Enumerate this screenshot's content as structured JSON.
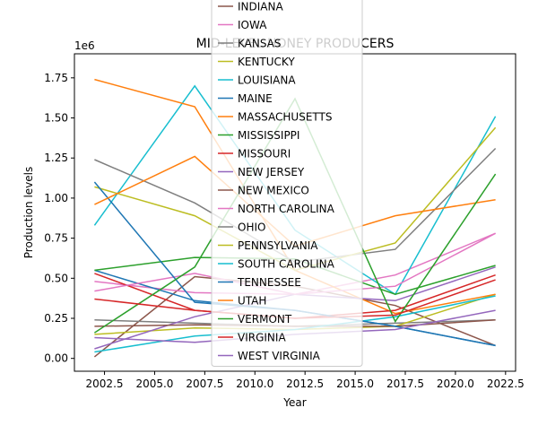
{
  "chart_data": {
    "type": "line",
    "title": "MID-LEVEL HONEY PRODUCERS",
    "xlabel": "Year",
    "ylabel": "Production levels",
    "y_offset_label": "1e6",
    "xlim": [
      2001.0,
      2023.0
    ],
    "ylim": [
      -0.08,
      1.9
    ],
    "x_ticks": [
      2002.5,
      2005.0,
      2007.5,
      2010.0,
      2012.5,
      2015.0,
      2017.5,
      2020.0,
      2022.5
    ],
    "x_tick_labels": [
      "2002.5",
      "2005.0",
      "2007.5",
      "2010.0",
      "2012.5",
      "2015.0",
      "2017.5",
      "2020.0",
      "2022.5"
    ],
    "y_ticks": [
      0.0,
      0.25,
      0.5,
      0.75,
      1.0,
      1.25,
      1.5,
      1.75
    ],
    "y_tick_labels": [
      "0.00",
      "0.25",
      "0.50",
      "0.75",
      "1.00",
      "1.25",
      "1.50",
      "1.75"
    ],
    "grid": false,
    "legend_position": "top-center",
    "x": [
      2002,
      2007,
      2012,
      2017,
      2022
    ],
    "series": [
      {
        "name": "INDIANA",
        "color": "#8c564b",
        "values": [
          0.01,
          0.51,
          0.45,
          0.33,
          0.08
        ]
      },
      {
        "name": "IOWA",
        "color": "#e377c2",
        "values": [
          0.48,
          0.41,
          0.4,
          0.52,
          0.78
        ]
      },
      {
        "name": "KANSAS",
        "color": "#7f7f7f",
        "values": [
          0.24,
          0.22,
          0.2,
          0.22,
          0.24
        ]
      },
      {
        "name": "KENTUCKY",
        "color": "#bcbd22",
        "values": [
          0.15,
          0.19,
          0.18,
          0.2,
          0.4
        ]
      },
      {
        "name": "LOUISIANA",
        "color": "#17becf",
        "values": [
          0.83,
          1.7,
          0.8,
          0.4,
          1.51
        ]
      },
      {
        "name": "MAINE",
        "color": "#1f77b4",
        "values": [
          0.55,
          0.36,
          0.3,
          0.2,
          0.08
        ]
      },
      {
        "name": "MASSACHUSETTS",
        "color": "#ff7f0e",
        "values": [
          1.74,
          1.57,
          0.55,
          0.28,
          0.4
        ]
      },
      {
        "name": "MISSISSIPPI",
        "color": "#2ca02c",
        "values": [
          0.55,
          0.63,
          0.62,
          0.4,
          0.58
        ]
      },
      {
        "name": "MISSOURI",
        "color": "#d62728",
        "values": [
          0.53,
          0.3,
          0.25,
          0.3,
          0.52
        ]
      },
      {
        "name": "NEW JERSEY",
        "color": "#9467bd",
        "values": [
          0.06,
          0.26,
          0.4,
          0.36,
          0.57
        ]
      },
      {
        "name": "NEW MEXICO",
        "color": "#8c564b",
        "values": [
          0.2,
          0.21,
          0.2,
          0.2,
          0.24
        ]
      },
      {
        "name": "NORTH CAROLINA",
        "color": "#e377c2",
        "values": [
          0.42,
          0.53,
          0.4,
          0.45,
          0.78
        ]
      },
      {
        "name": "OHIO",
        "color": "#7f7f7f",
        "values": [
          1.24,
          0.97,
          0.6,
          0.68,
          1.31
        ]
      },
      {
        "name": "PENNSYLVANIA",
        "color": "#bcbd22",
        "values": [
          1.07,
          0.89,
          0.55,
          0.72,
          1.44
        ]
      },
      {
        "name": "SOUTH CAROLINA",
        "color": "#17becf",
        "values": [
          0.04,
          0.14,
          0.18,
          0.26,
          0.39
        ]
      },
      {
        "name": "TENNESSEE",
        "color": "#1f77b4",
        "values": [
          1.1,
          0.35,
          0.3,
          0.2,
          0.08
        ]
      },
      {
        "name": "UTAH",
        "color": "#ff7f0e",
        "values": [
          0.96,
          1.26,
          0.7,
          0.89,
          0.99
        ]
      },
      {
        "name": "VERMONT",
        "color": "#2ca02c",
        "values": [
          0.16,
          0.57,
          1.62,
          0.23,
          1.15
        ]
      },
      {
        "name": "VIRGINIA",
        "color": "#d62728",
        "values": [
          0.37,
          0.3,
          0.25,
          0.27,
          0.49
        ]
      },
      {
        "name": "WEST VIRGINIA",
        "color": "#9467bd",
        "values": [
          0.13,
          0.1,
          0.15,
          0.18,
          0.3
        ]
      }
    ]
  }
}
